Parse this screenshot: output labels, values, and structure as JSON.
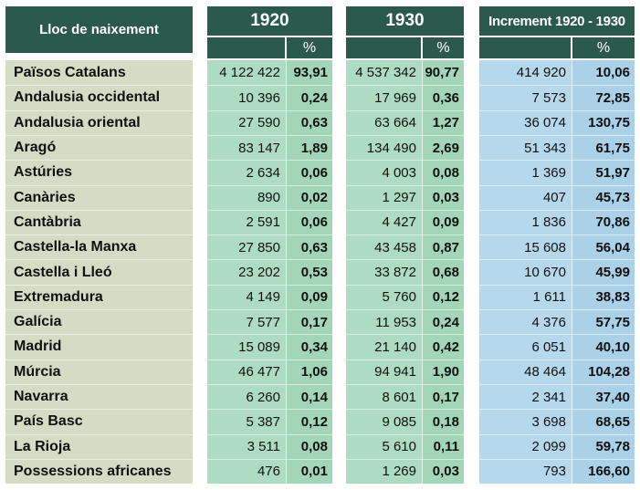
{
  "headers": {
    "lloc": "Lloc de naixement",
    "y1920": "1920",
    "y1930": "1930",
    "increment": "Increment 1920 - 1930",
    "pct": "%"
  },
  "rows": [
    {
      "name": "Països Catalans",
      "n1920": "4 122 422",
      "p1920": "93,91",
      "n1930": "4 537 342",
      "p1930": "90,77",
      "inc": "414 920",
      "pinc": "10,06"
    },
    {
      "name": "Andalusia occidental",
      "n1920": "10 396",
      "p1920": "0,24",
      "n1930": "17 969",
      "p1930": "0,36",
      "inc": "7 573",
      "pinc": "72,85"
    },
    {
      "name": "Andalusia oriental",
      "n1920": "27 590",
      "p1920": "0,63",
      "n1930": "63 664",
      "p1930": "1,27",
      "inc": "36 074",
      "pinc": "130,75"
    },
    {
      "name": "Aragó",
      "n1920": "83 147",
      "p1920": "1,89",
      "n1930": "134 490",
      "p1930": "2,69",
      "inc": "51 343",
      "pinc": "61,75"
    },
    {
      "name": "Astúries",
      "n1920": "2 634",
      "p1920": "0,06",
      "n1930": "4 003",
      "p1930": "0,08",
      "inc": "1 369",
      "pinc": "51,97"
    },
    {
      "name": "Canàries",
      "n1920": "890",
      "p1920": "0,02",
      "n1930": "1 297",
      "p1930": "0,03",
      "inc": "407",
      "pinc": "45,73"
    },
    {
      "name": "Cantàbria",
      "n1920": "2 591",
      "p1920": "0,06",
      "n1930": "4 427",
      "p1930": "0,09",
      "inc": "1 836",
      "pinc": "70,86"
    },
    {
      "name": "Castella-la Manxa",
      "n1920": "27 850",
      "p1920": "0,63",
      "n1930": "43 458",
      "p1930": "0,87",
      "inc": "15 608",
      "pinc": "56,04"
    },
    {
      "name": "Castella i Lleó",
      "n1920": "23 202",
      "p1920": "0,53",
      "n1930": "33 872",
      "p1930": "0,68",
      "inc": "10 670",
      "pinc": "45,99"
    },
    {
      "name": "Extremadura",
      "n1920": "4 149",
      "p1920": "0,09",
      "n1930": "5 760",
      "p1930": "0,12",
      "inc": "1 611",
      "pinc": "38,83"
    },
    {
      "name": "Galícia",
      "n1920": "7 577",
      "p1920": "0,17",
      "n1930": "11 953",
      "p1930": "0,24",
      "inc": "4 376",
      "pinc": "57,75"
    },
    {
      "name": "Madrid",
      "n1920": "15 089",
      "p1920": "0,34",
      "n1930": "21 140",
      "p1930": "0,42",
      "inc": "6 051",
      "pinc": "40,10"
    },
    {
      "name": "Múrcia",
      "n1920": "46 477",
      "p1920": "1,06",
      "n1930": "94 941",
      "p1930": "1,90",
      "inc": "48 464",
      "pinc": "104,28"
    },
    {
      "name": "Navarra",
      "n1920": "6 260",
      "p1920": "0,14",
      "n1930": "8 601",
      "p1930": "0,17",
      "inc": "2 341",
      "pinc": "37,40"
    },
    {
      "name": "País Basc",
      "n1920": "5 387",
      "p1920": "0,12",
      "n1930": "9 085",
      "p1930": "0,18",
      "inc": "3 698",
      "pinc": "68,65"
    },
    {
      "name": "La Rioja",
      "n1920": "3 511",
      "p1920": "0,08",
      "n1930": "5 610",
      "p1930": "0,11",
      "inc": "2 099",
      "pinc": "59,78"
    },
    {
      "name": "Possessions africanes",
      "n1920": "476",
      "p1920": "0,01",
      "n1930": "1 269",
      "p1930": "0,03",
      "inc": "793",
      "pinc": "166,60"
    }
  ]
}
